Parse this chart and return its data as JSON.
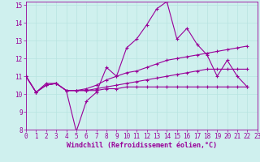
{
  "xlabel": "Windchill (Refroidissement éolien,°C)",
  "bg_color": "#cff0ee",
  "grid_color": "#b8e4e0",
  "line_color": "#990099",
  "xlim": [
    0,
    23
  ],
  "ylim": [
    8,
    15.2
  ],
  "yticks": [
    8,
    9,
    10,
    11,
    12,
    13,
    14,
    15
  ],
  "xticks": [
    0,
    1,
    2,
    3,
    4,
    5,
    6,
    7,
    8,
    9,
    10,
    11,
    12,
    13,
    14,
    15,
    16,
    17,
    18,
    19,
    20,
    21,
    22,
    23
  ],
  "series1": [
    11.0,
    10.1,
    10.6,
    10.6,
    10.2,
    7.9,
    9.6,
    10.1,
    11.5,
    11.0,
    12.6,
    13.1,
    13.9,
    14.8,
    15.2,
    13.1,
    13.7,
    12.8,
    12.2,
    11.0,
    11.9,
    11.0,
    10.4,
    null
  ],
  "series2": [
    11.0,
    10.1,
    10.5,
    10.6,
    10.2,
    10.2,
    10.3,
    10.5,
    10.8,
    11.0,
    11.2,
    11.3,
    11.5,
    11.7,
    11.9,
    12.0,
    12.1,
    12.2,
    12.3,
    12.4,
    12.5,
    12.6,
    12.7,
    null
  ],
  "series3": [
    11.0,
    10.1,
    10.5,
    10.6,
    10.2,
    10.2,
    10.2,
    10.2,
    10.3,
    10.3,
    10.4,
    10.4,
    10.4,
    10.4,
    10.4,
    10.4,
    10.4,
    10.4,
    10.4,
    10.4,
    10.4,
    10.4,
    10.4,
    null
  ],
  "series4": [
    11.0,
    10.1,
    10.5,
    10.6,
    10.2,
    10.2,
    10.2,
    10.3,
    10.4,
    10.5,
    10.6,
    10.7,
    10.8,
    10.9,
    11.0,
    11.1,
    11.2,
    11.3,
    11.4,
    11.4,
    11.4,
    11.4,
    11.4,
    null
  ],
  "tick_fontsize": 5.5,
  "xlabel_fontsize": 6.0
}
